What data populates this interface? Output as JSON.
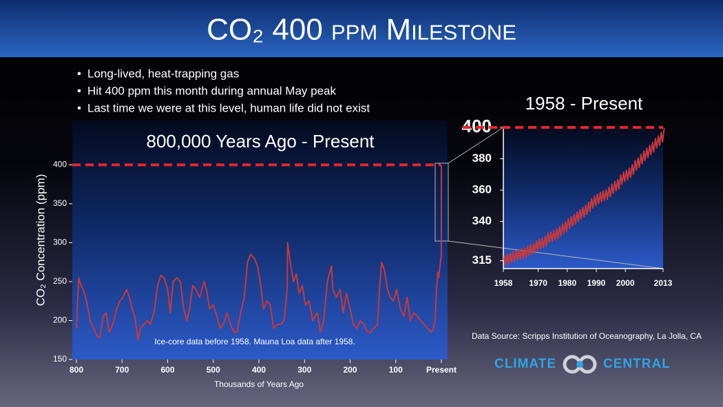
{
  "header": {
    "title": "CO₂ 400 ppm Milestone"
  },
  "bullets": [
    "Long-lived, heat-trapping gas",
    "Hit 400 ppm this month during annual May peak",
    "Last time we were at this level, human life did not exist"
  ],
  "data_source": "Data Source: Scripps Institution of Oceanography, La Jolla, CA",
  "logo": {
    "left": "CLIMATE",
    "right": "CENTRAL"
  },
  "chart_data": [
    {
      "type": "line",
      "title": "800,000 Years Ago - Present",
      "x_label": "Thousands of Years Ago",
      "y_label": "CO₂ Concentration (ppm)",
      "annotation": "Ice-core data before 1958. Mauna Loa data after 1958.",
      "xlim": [
        800,
        0
      ],
      "ylim": [
        150,
        457
      ],
      "xticks": [
        800,
        700,
        600,
        500,
        400,
        300,
        200,
        100,
        {
          "value": 0,
          "label": "Present"
        }
      ],
      "yticks": [
        150,
        200,
        250,
        300,
        350,
        400
      ],
      "threshold": 400,
      "threshold_color": "#e8262c",
      "series": [
        {
          "color": "#c8383c",
          "x": [
            800,
            795,
            790,
            785,
            778,
            770,
            762,
            755,
            748,
            742,
            735,
            728,
            720,
            712,
            705,
            698,
            690,
            684,
            678,
            672,
            665,
            660,
            652,
            645,
            638,
            630,
            622,
            615,
            608,
            600,
            594,
            588,
            580,
            572,
            565,
            558,
            552,
            545,
            538,
            530,
            520,
            515,
            508,
            500,
            492,
            485,
            478,
            470,
            462,
            455,
            448,
            440,
            432,
            425,
            418,
            410,
            403,
            396,
            390,
            382,
            375,
            368,
            360,
            352,
            345,
            338,
            337,
            330,
            324,
            318,
            312,
            305,
            298,
            290,
            282,
            272,
            265,
            258,
            250,
            241,
            238,
            230,
            222,
            215,
            208,
            200,
            193,
            185,
            178,
            170,
            162,
            155,
            148,
            140,
            135,
            131,
            125,
            118,
            112,
            105,
            98,
            90,
            82,
            75,
            68,
            60,
            52,
            45,
            38,
            30,
            22,
            18,
            14,
            11,
            8,
            6,
            4,
            2,
            1,
            0.2,
            0
          ],
          "values": [
            190,
            255,
            245,
            240,
            225,
            200,
            190,
            180,
            178,
            205,
            210,
            185,
            195,
            215,
            225,
            230,
            240,
            230,
            215,
            205,
            175,
            190,
            195,
            200,
            195,
            210,
            245,
            258,
            255,
            240,
            210,
            250,
            255,
            250,
            215,
            200,
            215,
            245,
            240,
            230,
            250,
            240,
            215,
            220,
            205,
            190,
            195,
            210,
            195,
            185,
            185,
            210,
            230,
            275,
            285,
            280,
            270,
            245,
            215,
            225,
            220,
            190,
            195,
            195,
            200,
            240,
            300,
            270,
            250,
            260,
            235,
            245,
            220,
            225,
            200,
            210,
            185,
            200,
            250,
            270,
            240,
            230,
            240,
            210,
            235,
            215,
            195,
            190,
            200,
            195,
            185,
            185,
            190,
            195,
            245,
            275,
            265,
            240,
            230,
            225,
            240,
            215,
            205,
            230,
            200,
            210,
            205,
            200,
            195,
            190,
            185,
            188,
            200,
            235,
            262,
            255,
            265,
            275,
            280,
            285,
            400
          ]
        }
      ]
    },
    {
      "type": "line",
      "title": "1958 - Present",
      "xlim": [
        1958,
        2013
      ],
      "ylim": [
        310,
        400
      ],
      "xticks": [
        1958,
        1970,
        1980,
        1990,
        2000,
        2013
      ],
      "yticks": [
        315,
        340,
        360,
        380,
        400
      ],
      "threshold": 400,
      "threshold_color": "#e8262c",
      "series": [
        {
          "color": "#c8383c",
          "x": [
            1958.2,
            1958.4,
            1958.8,
            1959.4,
            1959.8,
            1960.4,
            1960.8,
            1961.4,
            1961.8,
            1962.4,
            1962.8,
            1963.4,
            1963.8,
            1964.4,
            1964.8,
            1965.4,
            1965.8,
            1966.4,
            1966.8,
            1967.4,
            1967.8,
            1968.4,
            1968.8,
            1969.4,
            1969.8,
            1970.4,
            1970.8,
            1971.4,
            1971.8,
            1972.4,
            1972.8,
            1973.4,
            1973.8,
            1974.4,
            1974.8,
            1975.4,
            1975.8,
            1976.4,
            1976.8,
            1977.4,
            1977.8,
            1978.4,
            1978.8,
            1979.4,
            1979.8,
            1980.4,
            1980.8,
            1981.4,
            1981.8,
            1982.4,
            1982.8,
            1983.4,
            1983.8,
            1984.4,
            1984.8,
            1985.4,
            1985.8,
            1986.4,
            1986.8,
            1987.4,
            1987.8,
            1988.4,
            1988.8,
            1989.4,
            1989.8,
            1990.4,
            1990.8,
            1991.4,
            1991.8,
            1992.4,
            1992.8,
            1993.4,
            1993.8,
            1994.4,
            1994.8,
            1995.4,
            1995.8,
            1996.4,
            1996.8,
            1997.4,
            1997.8,
            1998.4,
            1998.8,
            1999.4,
            1999.8,
            2000.4,
            2000.8,
            2001.4,
            2001.8,
            2002.4,
            2002.8,
            2003.4,
            2003.8,
            2004.4,
            2004.8,
            2005.4,
            2005.8,
            2006.4,
            2006.8,
            2007.4,
            2007.8,
            2008.4,
            2008.8,
            2009.4,
            2009.8,
            2010.4,
            2010.8,
            2011.4,
            2011.8,
            2012.4,
            2012.8,
            2013.4
          ],
          "values": [
            315.5,
            318.3,
            312.3,
            319.0,
            313.0,
            319.9,
            313.9,
            320.6,
            314.6,
            321.5,
            315.5,
            322.0,
            316.0,
            322.6,
            316.6,
            323.0,
            317.0,
            324.4,
            318.4,
            325.2,
            319.2,
            326.0,
            320.0,
            327.6,
            321.6,
            328.7,
            322.7,
            329.3,
            323.3,
            330.5,
            324.5,
            332.7,
            326.7,
            333.2,
            327.2,
            334.1,
            328.1,
            335.0,
            329.0,
            336.8,
            330.8,
            338.4,
            332.4,
            339.8,
            333.8,
            341.7,
            335.7,
            343.1,
            337.1,
            344.4,
            338.4,
            346.0,
            340.0,
            347.6,
            341.6,
            349.0,
            343.0,
            350.4,
            344.4,
            352.2,
            346.2,
            354.6,
            348.6,
            356.1,
            350.1,
            357.4,
            351.4,
            358.6,
            352.6,
            359.4,
            353.4,
            360.1,
            354.1,
            361.8,
            355.8,
            363.8,
            357.8,
            365.6,
            359.6,
            366.7,
            360.7,
            369.7,
            363.7,
            371.4,
            365.4,
            372.6,
            366.6,
            374.1,
            368.1,
            376.2,
            370.2,
            378.8,
            372.8,
            380.5,
            374.5,
            382.8,
            376.8,
            384.9,
            378.9,
            386.8,
            380.8,
            388.6,
            382.6,
            390.4,
            384.4,
            392.9,
            386.9,
            394.6,
            388.6,
            396.8,
            390.8,
            399.8
          ]
        }
      ]
    }
  ]
}
